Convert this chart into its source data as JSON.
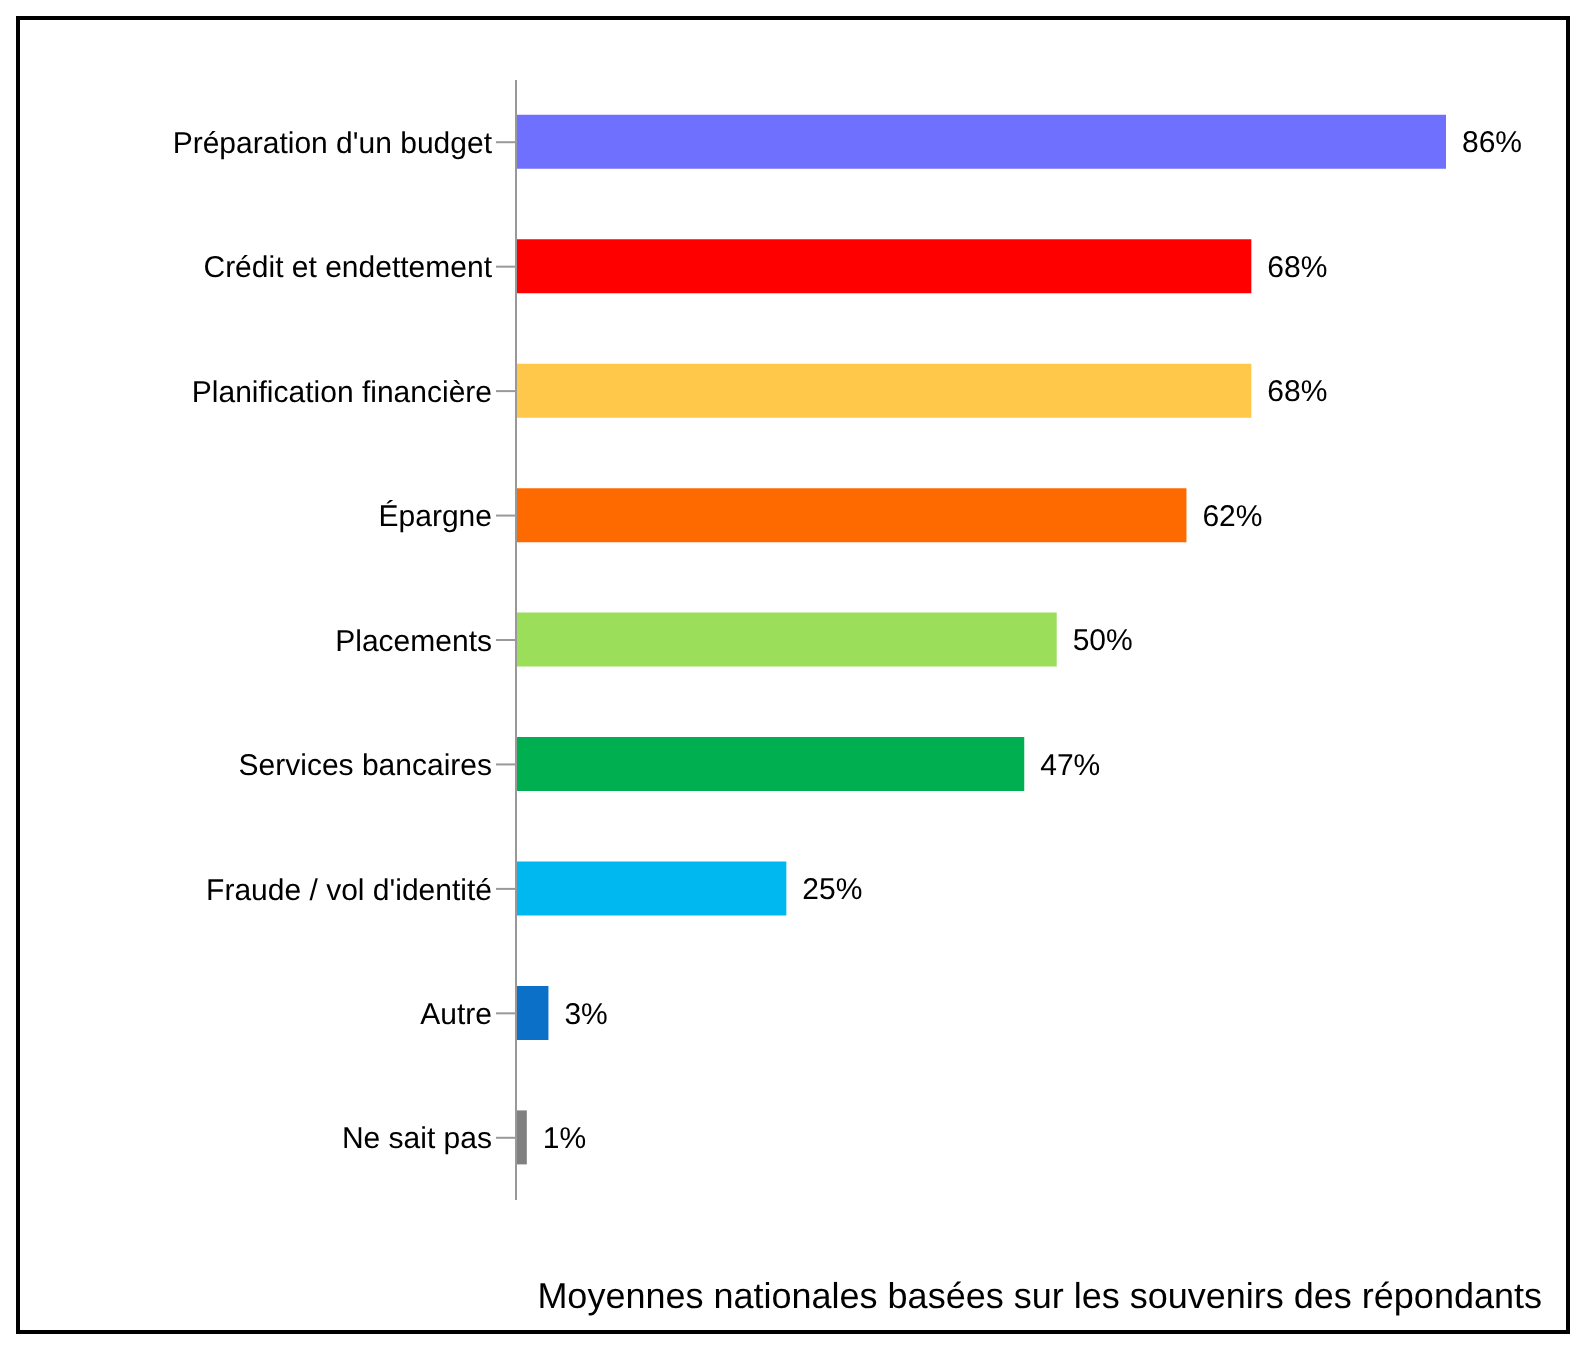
{
  "chart_data": {
    "type": "bar",
    "orientation": "horizontal",
    "categories": [
      "Préparation d'un budget",
      "Crédit et endettement",
      "Planification financière",
      "Épargne",
      "Placements",
      "Services bancaires",
      "Fraude / vol d'identité",
      "Autre",
      "Ne sait pas"
    ],
    "values": [
      86,
      68,
      68,
      62,
      50,
      47,
      25,
      3,
      1
    ],
    "colors": [
      "#7070ff",
      "#ff0000",
      "#ffc84a",
      "#ff6a00",
      "#9ade5a",
      "#00b050",
      "#00b8f0",
      "#0a70c8",
      "#808080"
    ],
    "value_labels": [
      "86%",
      "68%",
      "68%",
      "62%",
      "50%",
      "47%",
      "25%",
      "3%",
      "1%"
    ],
    "annotations": [
      "Moyennes nationales basées sur les souvenirs des répondants"
    ]
  }
}
